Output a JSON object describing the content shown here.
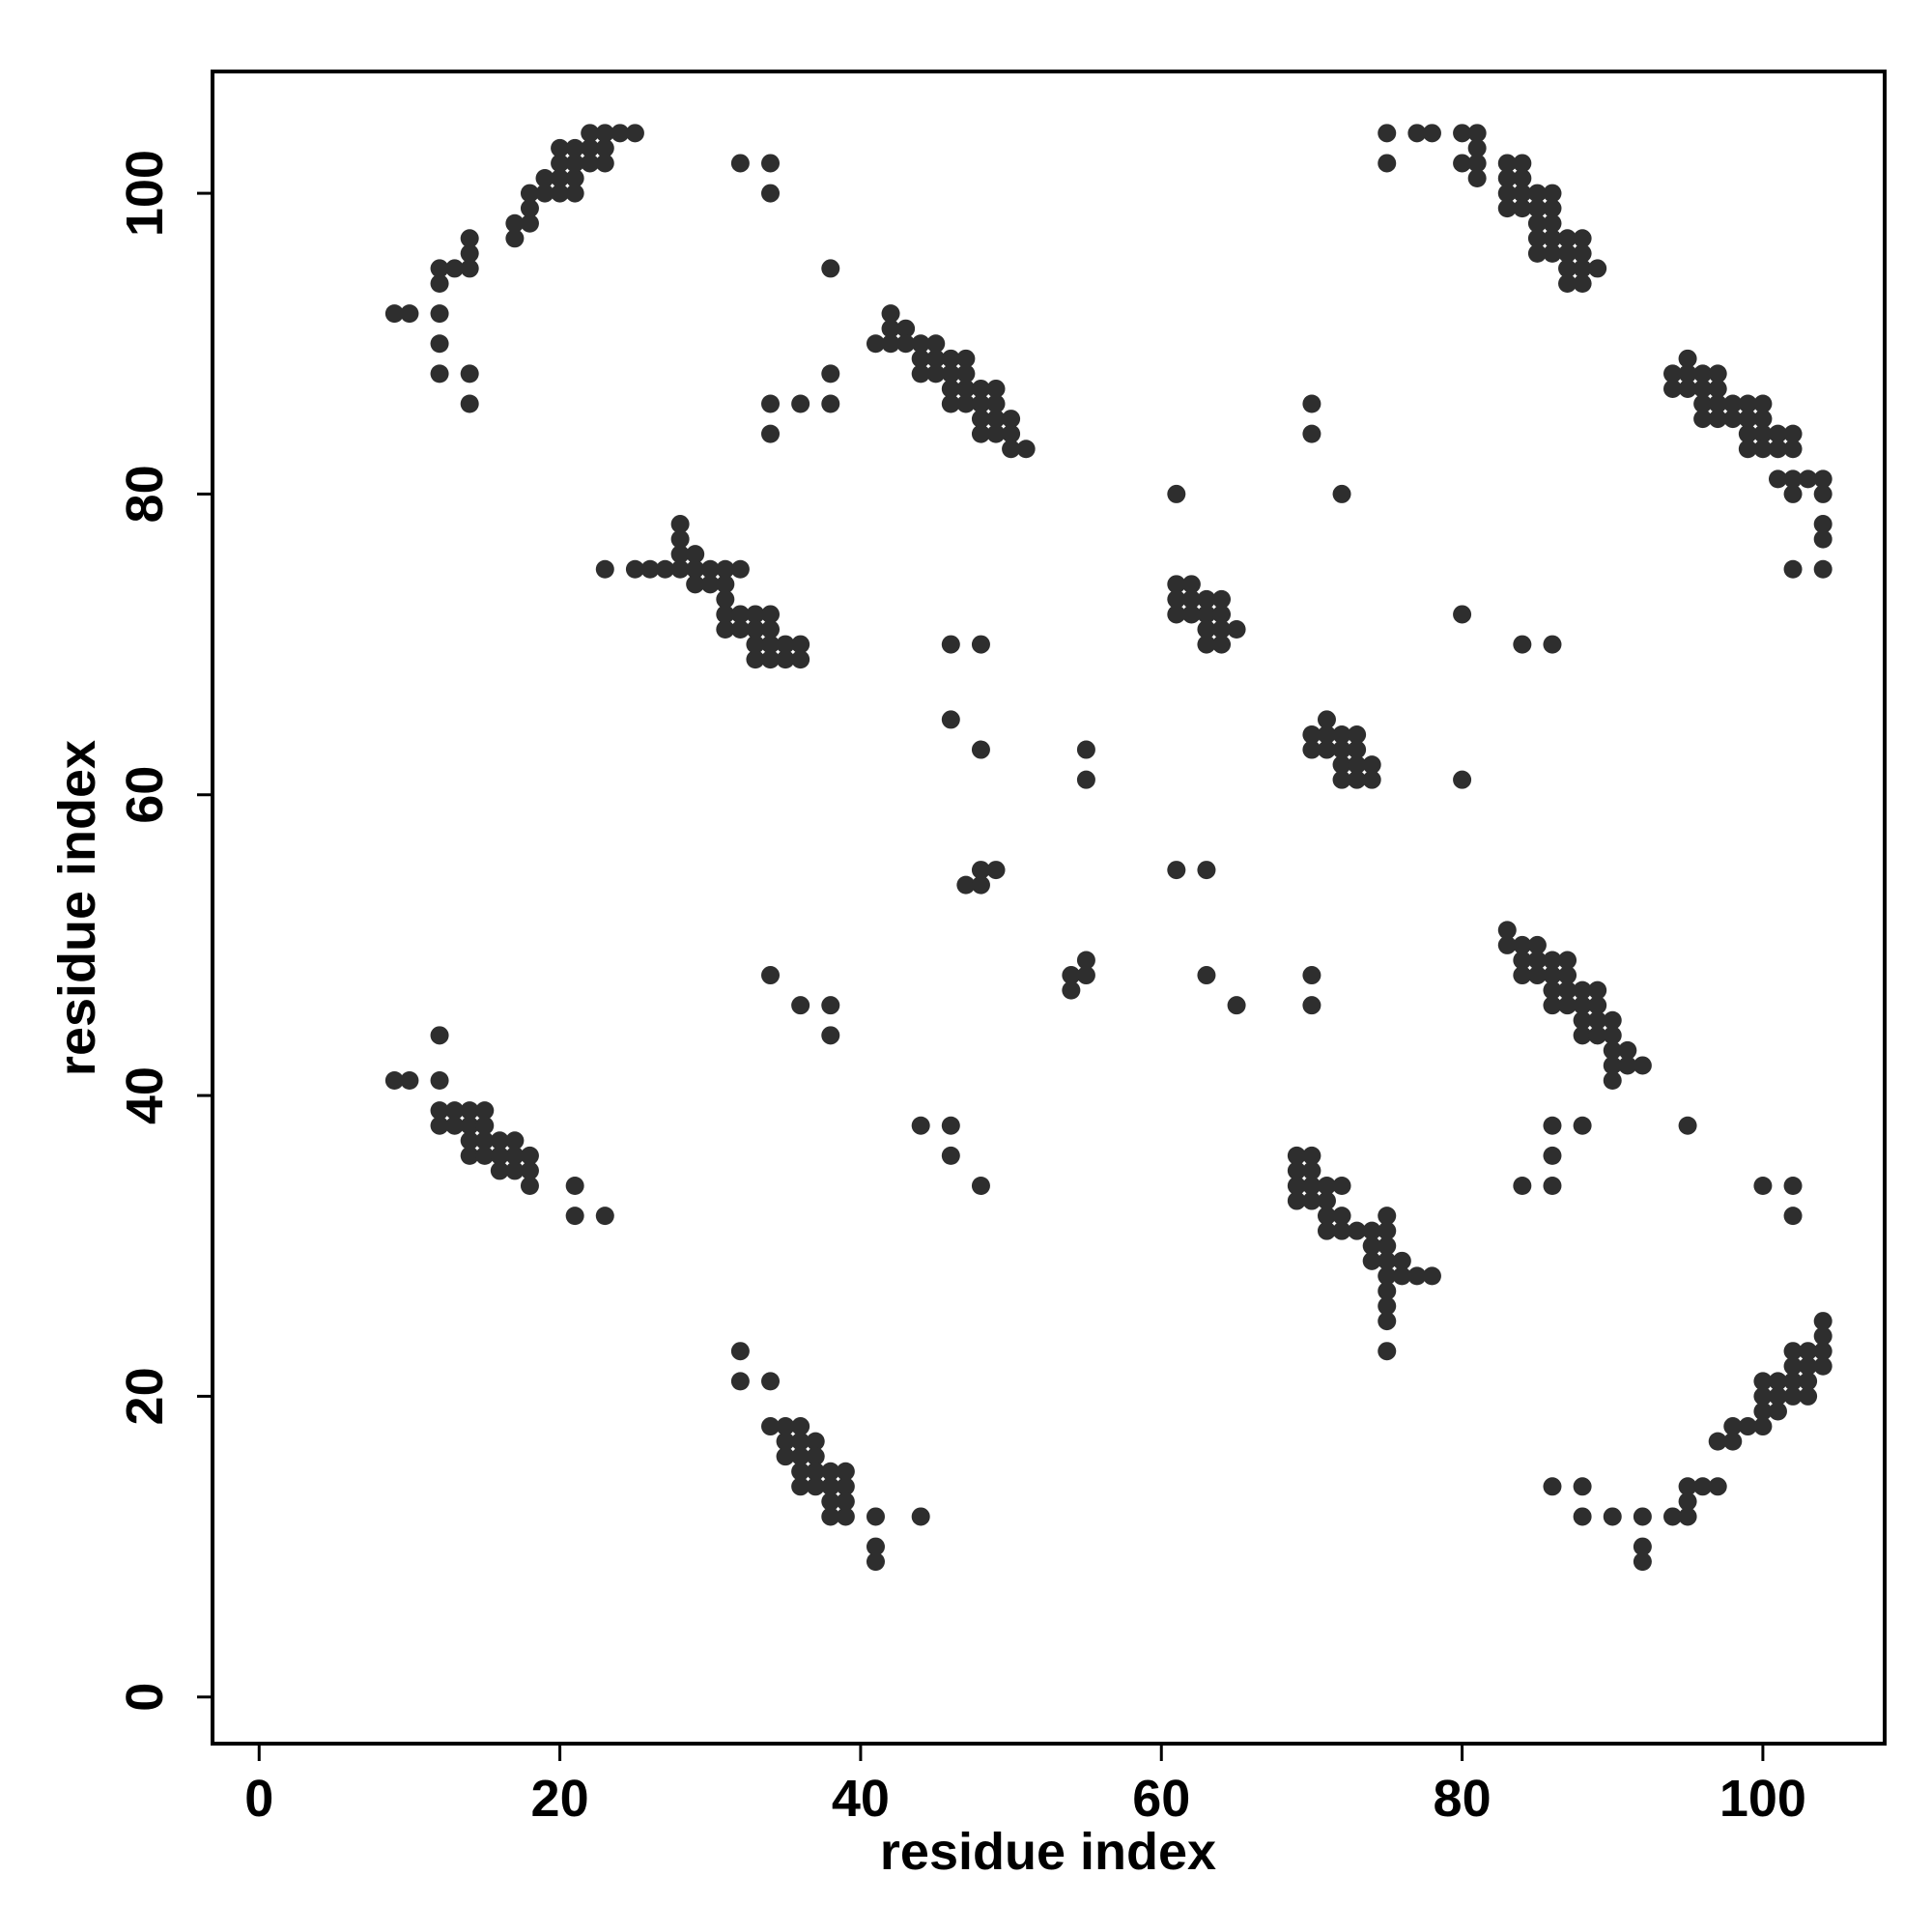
{
  "chart_data": {
    "type": "scatter",
    "xlabel": "residue index",
    "ylabel": "residue index",
    "xlim": [
      -3.1,
      108.1
    ],
    "ylim": [
      -3.1,
      108.1
    ],
    "xticks": [
      0,
      20,
      40,
      60,
      80,
      100
    ],
    "yticks": [
      0,
      20,
      40,
      60,
      80,
      100
    ],
    "grid": false,
    "series": [
      {
        "color": "#2e2e2e",
        "x": [
          9,
          10,
          12,
          12,
          12,
          13,
          14,
          14,
          14,
          12,
          12,
          14,
          14,
          17,
          17,
          18,
          18,
          18,
          19,
          19,
          20,
          20,
          20,
          20,
          21,
          21,
          21,
          21,
          22,
          22,
          22,
          23,
          23,
          23,
          24,
          25,
          32,
          34,
          34,
          38,
          38,
          38,
          36,
          34,
          34,
          41,
          42,
          42,
          42,
          43,
          43,
          44,
          44,
          44,
          45,
          45,
          45,
          46,
          46,
          46,
          46,
          47,
          47,
          47,
          47,
          48,
          48,
          48,
          48,
          49,
          49,
          49,
          49,
          50,
          50,
          50,
          51,
          23,
          25,
          26,
          27,
          28,
          28,
          28,
          28,
          29,
          29,
          29,
          30,
          30,
          31,
          31,
          31,
          31,
          31,
          32,
          32,
          32,
          33,
          33,
          33,
          33,
          34,
          34,
          34,
          34,
          35,
          35,
          36,
          36,
          46,
          48,
          46,
          48,
          55,
          55,
          47,
          48,
          48,
          49,
          54,
          54,
          55,
          55,
          34,
          36,
          38,
          38,
          44,
          46,
          46,
          48,
          61,
          61,
          61,
          62,
          62,
          62,
          63,
          63,
          63,
          63,
          64,
          64,
          64,
          64,
          65,
          61,
          61,
          63,
          63,
          65,
          70,
          70,
          72,
          80,
          84,
          86,
          80,
          70,
          70,
          70,
          70,
          71,
          71,
          71,
          72,
          72,
          72,
          72,
          73,
          73,
          73,
          73,
          74,
          74,
          75,
          75,
          77,
          78,
          80,
          80,
          81,
          81,
          81,
          81,
          83,
          83,
          83,
          83,
          84,
          84,
          84,
          84,
          85,
          85,
          85,
          85,
          85,
          86,
          86,
          86,
          86,
          86,
          87,
          87,
          87,
          87,
          88,
          88,
          88,
          88,
          89,
          94,
          94,
          95,
          95,
          95,
          96,
          96,
          96,
          96,
          97,
          97,
          97,
          97,
          98,
          98,
          99,
          99,
          99,
          99,
          100,
          100,
          100,
          100,
          101,
          101,
          101,
          102,
          102,
          102,
          102,
          102,
          103,
          104,
          104,
          104,
          104,
          104,
          83,
          83,
          84,
          84,
          84,
          85,
          85,
          85,
          86,
          86,
          86,
          86,
          87,
          87,
          87,
          87,
          88,
          88,
          88,
          88,
          89,
          89,
          89,
          89,
          90,
          90,
          90,
          90,
          90,
          91,
          91,
          92,
          86,
          86,
          86,
          84,
          88,
          95,
          100,
          102,
          102,
          9,
          10,
          12,
          12,
          12,
          12,
          13,
          13,
          14,
          14,
          14,
          14,
          15,
          15,
          15,
          15,
          16,
          16,
          16,
          17,
          17,
          17,
          18,
          18,
          18,
          21,
          21,
          23,
          69,
          69,
          69,
          69,
          70,
          70,
          70,
          70,
          71,
          71,
          71,
          71,
          72,
          72,
          72,
          73,
          74,
          74,
          74,
          75,
          75,
          75,
          75,
          75,
          75,
          75,
          75,
          75,
          76,
          76,
          77,
          78,
          32,
          32,
          34,
          34,
          35,
          35,
          35,
          36,
          36,
          36,
          36,
          36,
          37,
          37,
          37,
          37,
          38,
          38,
          38,
          38,
          39,
          39,
          39,
          39,
          41,
          41,
          41,
          44,
          86,
          88,
          88,
          90,
          92,
          92,
          92,
          94,
          95,
          95,
          95,
          96,
          97,
          97,
          98,
          98,
          99,
          100,
          100,
          100,
          100,
          101,
          101,
          101,
          102,
          102,
          102,
          102,
          103,
          103,
          103,
          103,
          104,
          104,
          104,
          104
        ],
        "values": [
          92,
          92,
          92,
          94,
          95,
          95,
          95,
          96,
          97,
          90,
          88,
          88,
          86,
          97,
          98,
          98,
          99,
          100,
          100,
          101,
          100,
          101,
          102,
          103,
          100,
          101,
          102,
          103,
          102,
          103,
          104,
          102,
          103,
          104,
          104,
          104,
          102,
          102,
          100,
          95,
          88,
          86,
          86,
          86,
          84,
          90,
          90,
          91,
          92,
          91,
          90,
          90,
          89,
          88,
          90,
          89,
          88,
          89,
          88,
          87,
          86,
          89,
          88,
          87,
          86,
          87,
          86,
          85,
          84,
          87,
          86,
          85,
          84,
          85,
          84,
          83,
          83,
          75,
          75,
          75,
          75,
          78,
          77,
          76,
          75,
          76,
          75,
          74,
          75,
          74,
          75,
          74,
          73,
          72,
          71,
          75,
          72,
          71,
          72,
          71,
          70,
          69,
          72,
          71,
          70,
          69,
          70,
          69,
          70,
          69,
          70,
          70,
          65,
          63,
          63,
          61,
          54,
          54,
          55,
          55,
          48,
          47,
          48,
          49,
          48,
          46,
          46,
          44,
          38,
          38,
          36,
          34,
          74,
          73,
          72,
          74,
          73,
          72,
          73,
          72,
          71,
          70,
          73,
          72,
          71,
          70,
          71,
          80,
          55,
          55,
          48,
          46,
          86,
          84,
          80,
          72,
          70,
          70,
          61,
          48,
          46,
          64,
          63,
          65,
          64,
          63,
          64,
          63,
          62,
          61,
          64,
          63,
          62,
          61,
          62,
          61,
          104,
          102,
          104,
          104,
          104,
          102,
          104,
          103,
          102,
          101,
          102,
          101,
          100,
          99,
          102,
          101,
          100,
          99,
          100,
          99,
          98,
          97,
          96,
          100,
          99,
          98,
          97,
          96,
          97,
          96,
          95,
          94,
          97,
          96,
          95,
          94,
          95,
          88,
          87,
          89,
          88,
          87,
          88,
          87,
          86,
          85,
          88,
          87,
          86,
          85,
          86,
          85,
          86,
          85,
          84,
          83,
          86,
          85,
          84,
          83,
          84,
          83,
          81,
          84,
          83,
          81,
          80,
          75,
          81,
          81,
          80,
          78,
          77,
          75,
          51,
          50,
          50,
          49,
          48,
          50,
          49,
          48,
          49,
          48,
          47,
          46,
          49,
          48,
          47,
          46,
          47,
          46,
          45,
          44,
          47,
          46,
          45,
          44,
          45,
          44,
          43,
          42,
          41,
          43,
          42,
          42,
          38,
          36,
          34,
          34,
          38,
          38,
          34,
          34,
          32,
          41,
          41,
          44,
          41,
          39,
          38,
          39,
          38,
          39,
          38,
          37,
          36,
          39,
          38,
          37,
          36,
          37,
          36,
          35,
          37,
          36,
          35,
          36,
          35,
          34,
          34,
          32,
          32,
          36,
          35,
          34,
          33,
          36,
          35,
          34,
          33,
          34,
          33,
          32,
          31,
          34,
          32,
          31,
          31,
          31,
          30,
          29,
          32,
          31,
          30,
          29,
          28,
          27,
          26,
          25,
          23,
          29,
          28,
          28,
          28,
          23,
          21,
          21,
          18,
          18,
          17,
          16,
          18,
          17,
          16,
          15,
          14,
          17,
          16,
          15,
          14,
          15,
          14,
          13,
          12,
          15,
          14,
          13,
          12,
          12,
          10,
          9,
          12,
          14,
          14,
          12,
          12,
          12,
          10,
          9,
          12,
          14,
          13,
          12,
          14,
          17,
          14,
          18,
          17,
          18,
          21,
          20,
          19,
          18,
          21,
          20,
          19,
          23,
          22,
          21,
          20,
          23,
          22,
          21,
          20,
          25,
          24,
          23,
          22
        ]
      }
    ]
  }
}
